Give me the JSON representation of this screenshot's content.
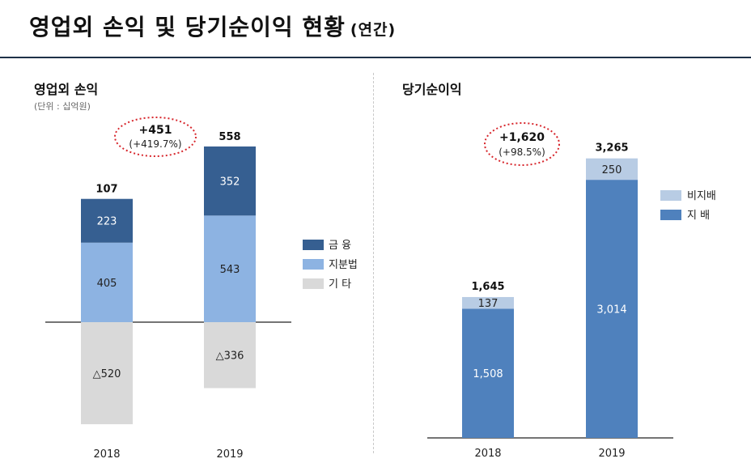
{
  "header": {
    "title": "영업외 손익 및 당기순이익 현황",
    "suffix": "(연간)"
  },
  "colors": {
    "finance": "#365f91",
    "equity_method": "#8db3e2",
    "other": "#d9d9d9",
    "controlling": "#4f81bd",
    "noncontrolling": "#b8cce4",
    "change_circle": "#d7262c"
  },
  "chart_data": [
    {
      "type": "bar",
      "stacked": true,
      "title": "영업외 손익",
      "unit": "(단위 : 십억원)",
      "categories": [
        "2018",
        "2019"
      ],
      "series": [
        {
          "name": "금 융",
          "values": [
            223,
            352
          ],
          "labels": [
            "223",
            "352"
          ]
        },
        {
          "name": "지분법",
          "values": [
            405,
            543
          ],
          "labels": [
            "405",
            "543"
          ]
        },
        {
          "name": "기 타",
          "values": [
            -520,
            -336
          ],
          "labels": [
            "△520",
            "△336"
          ]
        }
      ],
      "totals": [
        "107",
        "558"
      ],
      "change": {
        "amount": "+451",
        "rate": "(+419.7%)"
      },
      "legend_position": "right"
    },
    {
      "type": "bar",
      "stacked": true,
      "title": "당기순이익",
      "categories": [
        "2018",
        "2019"
      ],
      "series": [
        {
          "name": "지 배",
          "values": [
            1508,
            3014
          ],
          "labels": [
            "1,508",
            "3,014"
          ]
        },
        {
          "name": "비지배",
          "values": [
            137,
            250
          ],
          "labels": [
            "137",
            "250"
          ]
        }
      ],
      "totals": [
        "1,645",
        "3,265"
      ],
      "change": {
        "amount": "+1,620",
        "rate": "(+98.5%)"
      },
      "legend_position": "top-right"
    }
  ]
}
